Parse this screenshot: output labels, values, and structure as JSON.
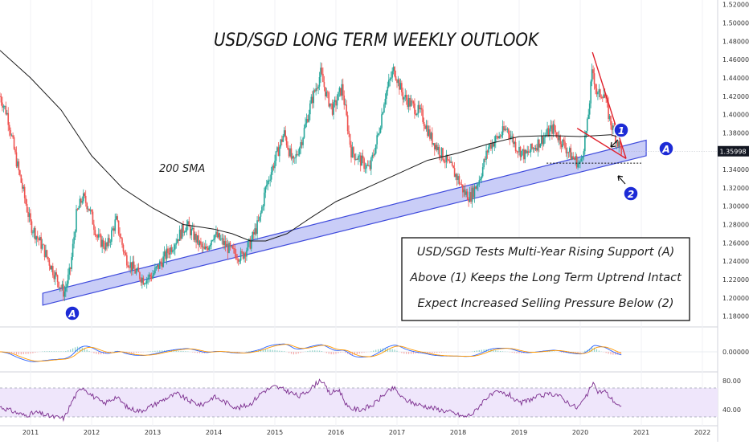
{
  "chart_data": [
    {
      "type": "candlestick",
      "title": "USD/SGD LONG TERM WEEKLY OUTLOOK",
      "price_axis": {
        "ylim": [
          1.17,
          1.525
        ],
        "ticks": [
          "1.52000",
          "1.50000",
          "1.48000",
          "1.46000",
          "1.44000",
          "1.42000",
          "1.40000",
          "1.38000",
          "1.36000",
          "1.34000",
          "1.32000",
          "1.30000",
          "1.28000",
          "1.26000",
          "1.24000",
          "1.22000",
          "1.20000",
          "1.18000"
        ],
        "last_price": "1.35998"
      },
      "x_axis": {
        "labels": [
          "2011",
          "2012",
          "2013",
          "2014",
          "2015",
          "2016",
          "2017",
          "2018",
          "2019",
          "2020",
          "2021",
          "2022"
        ],
        "xlim": [
          2010.5,
          2022.25
        ]
      },
      "price_path": [
        [
          2010.5,
          1.42
        ],
        [
          2010.62,
          1.4
        ],
        [
          2010.75,
          1.355
        ],
        [
          2010.9,
          1.31
        ],
        [
          2011.0,
          1.28
        ],
        [
          2011.2,
          1.255
        ],
        [
          2011.4,
          1.225
        ],
        [
          2011.55,
          1.205
        ],
        [
          2011.65,
          1.23
        ],
        [
          2011.75,
          1.29
        ],
        [
          2011.85,
          1.31
        ],
        [
          2011.95,
          1.3
        ],
        [
          2012.1,
          1.265
        ],
        [
          2012.25,
          1.255
        ],
        [
          2012.4,
          1.285
        ],
        [
          2012.55,
          1.245
        ],
        [
          2012.7,
          1.23
        ],
        [
          2012.85,
          1.22
        ],
        [
          2013.0,
          1.225
        ],
        [
          2013.2,
          1.245
        ],
        [
          2013.4,
          1.265
        ],
        [
          2013.55,
          1.28
        ],
        [
          2013.7,
          1.265
        ],
        [
          2013.85,
          1.25
        ],
        [
          2014.0,
          1.27
        ],
        [
          2014.15,
          1.26
        ],
        [
          2014.3,
          1.25
        ],
        [
          2014.45,
          1.245
        ],
        [
          2014.6,
          1.26
        ],
        [
          2014.75,
          1.285
        ],
        [
          2014.85,
          1.32
        ],
        [
          2015.0,
          1.35
        ],
        [
          2015.15,
          1.38
        ],
        [
          2015.3,
          1.345
        ],
        [
          2015.45,
          1.375
        ],
        [
          2015.6,
          1.415
        ],
        [
          2015.75,
          1.445
        ],
        [
          2015.85,
          1.42
        ],
        [
          2015.95,
          1.405
        ],
        [
          2016.1,
          1.43
        ],
        [
          2016.25,
          1.36
        ],
        [
          2016.4,
          1.35
        ],
        [
          2016.55,
          1.34
        ],
        [
          2016.7,
          1.38
        ],
        [
          2016.8,
          1.42
        ],
        [
          2016.95,
          1.45
        ],
        [
          2017.1,
          1.42
        ],
        [
          2017.25,
          1.41
        ],
        [
          2017.4,
          1.4
        ],
        [
          2017.55,
          1.375
        ],
        [
          2017.7,
          1.36
        ],
        [
          2017.85,
          1.345
        ],
        [
          2018.0,
          1.33
        ],
        [
          2018.1,
          1.315
        ],
        [
          2018.2,
          1.31
        ],
        [
          2018.35,
          1.33
        ],
        [
          2018.5,
          1.365
        ],
        [
          2018.65,
          1.375
        ],
        [
          2018.8,
          1.385
        ],
        [
          2018.95,
          1.365
        ],
        [
          2019.1,
          1.355
        ],
        [
          2019.25,
          1.365
        ],
        [
          2019.4,
          1.375
        ],
        [
          2019.55,
          1.385
        ],
        [
          2019.7,
          1.37
        ],
        [
          2019.85,
          1.355
        ],
        [
          2020.0,
          1.345
        ],
        [
          2020.12,
          1.39
        ],
        [
          2020.2,
          1.45
        ],
        [
          2020.28,
          1.42
        ],
        [
          2020.38,
          1.425
        ],
        [
          2020.48,
          1.395
        ],
        [
          2020.58,
          1.375
        ],
        [
          2020.68,
          1.36
        ]
      ],
      "sma_path": [
        [
          2010.5,
          1.47
        ],
        [
          2011.0,
          1.44
        ],
        [
          2011.5,
          1.405
        ],
        [
          2012.0,
          1.355
        ],
        [
          2012.5,
          1.32
        ],
        [
          2013.0,
          1.298
        ],
        [
          2013.5,
          1.28
        ],
        [
          2014.0,
          1.275
        ],
        [
          2014.3,
          1.27
        ],
        [
          2014.6,
          1.262
        ],
        [
          2014.85,
          1.262
        ],
        [
          2015.2,
          1.27
        ],
        [
          2015.6,
          1.288
        ],
        [
          2016.0,
          1.305
        ],
        [
          2016.5,
          1.32
        ],
        [
          2017.0,
          1.335
        ],
        [
          2017.5,
          1.35
        ],
        [
          2018.0,
          1.358
        ],
        [
          2018.5,
          1.368
        ],
        [
          2019.0,
          1.376
        ],
        [
          2019.5,
          1.377
        ],
        [
          2020.0,
          1.376
        ],
        [
          2020.5,
          1.378
        ],
        [
          2020.65,
          1.375
        ]
      ],
      "series": [
        {
          "name": "Rising Support (A)",
          "type": "channel",
          "lower": [
            [
              2011.2,
              1.192
            ],
            [
              2021.08,
              1.355
            ]
          ],
          "upper": [
            [
              2011.2,
              1.205
            ],
            [
              2021.08,
              1.372
            ]
          ]
        },
        {
          "name": "Triangle",
          "type": "lines",
          "segments": [
            [
              [
                2019.95,
                1.385
              ],
              [
                2020.75,
                1.352
              ]
            ],
            [
              [
                2020.2,
                1.468
              ],
              [
                2020.75,
                1.352
              ]
            ]
          ]
        },
        {
          "name": "Level (2)",
          "type": "hline",
          "y": 1.347,
          "x": [
            2019.45,
            2021.0
          ]
        }
      ],
      "annotations": {
        "sma_label": "200 SMA",
        "point_a": "A",
        "point_1": "1",
        "point_2": "2",
        "box_lines": [
          "USD/SGD Tests Multi-Year Rising Support (A)",
          "Above (1) Keeps the Long Term Uptrend Intact",
          "Expect Increased Selling Pressure Below (2)"
        ]
      }
    },
    {
      "type": "line",
      "name": "MACD",
      "ticks": [
        "0.00000"
      ],
      "ylim": [
        -1,
        1
      ]
    },
    {
      "type": "line",
      "name": "RSI",
      "ticks": [
        "80.00",
        "40.00"
      ],
      "ylim": [
        20,
        90
      ],
      "band": [
        30,
        70
      ],
      "rsi_path": [
        [
          2010.5,
          44
        ],
        [
          2010.7,
          38
        ],
        [
          2010.9,
          32
        ],
        [
          2011.1,
          36
        ],
        [
          2011.35,
          30
        ],
        [
          2011.55,
          28
        ],
        [
          2011.7,
          55
        ],
        [
          2011.85,
          72
        ],
        [
          2012.0,
          60
        ],
        [
          2012.2,
          48
        ],
        [
          2012.4,
          58
        ],
        [
          2012.6,
          42
        ],
        [
          2012.8,
          38
        ],
        [
          2013.0,
          46
        ],
        [
          2013.2,
          55
        ],
        [
          2013.4,
          62
        ],
        [
          2013.6,
          52
        ],
        [
          2013.8,
          46
        ],
        [
          2014.0,
          58
        ],
        [
          2014.2,
          50
        ],
        [
          2014.4,
          42
        ],
        [
          2014.6,
          48
        ],
        [
          2014.8,
          65
        ],
        [
          2015.0,
          72
        ],
        [
          2015.2,
          66
        ],
        [
          2015.4,
          58
        ],
        [
          2015.6,
          70
        ],
        [
          2015.75,
          82
        ],
        [
          2015.9,
          62
        ],
        [
          2016.05,
          68
        ],
        [
          2016.2,
          42
        ],
        [
          2016.4,
          40
        ],
        [
          2016.6,
          46
        ],
        [
          2016.8,
          62
        ],
        [
          2016.95,
          70
        ],
        [
          2017.1,
          55
        ],
        [
          2017.3,
          48
        ],
        [
          2017.5,
          44
        ],
        [
          2017.7,
          40
        ],
        [
          2017.9,
          36
        ],
        [
          2018.1,
          30
        ],
        [
          2018.25,
          35
        ],
        [
          2018.45,
          56
        ],
        [
          2018.65,
          64
        ],
        [
          2018.85,
          60
        ],
        [
          2019.0,
          48
        ],
        [
          2019.2,
          55
        ],
        [
          2019.4,
          60
        ],
        [
          2019.6,
          62
        ],
        [
          2019.8,
          50
        ],
        [
          2019.95,
          42
        ],
        [
          2020.1,
          58
        ],
        [
          2020.2,
          76
        ],
        [
          2020.3,
          64
        ],
        [
          2020.4,
          66
        ],
        [
          2020.5,
          56
        ],
        [
          2020.6,
          48
        ],
        [
          2020.7,
          40
        ]
      ]
    }
  ]
}
